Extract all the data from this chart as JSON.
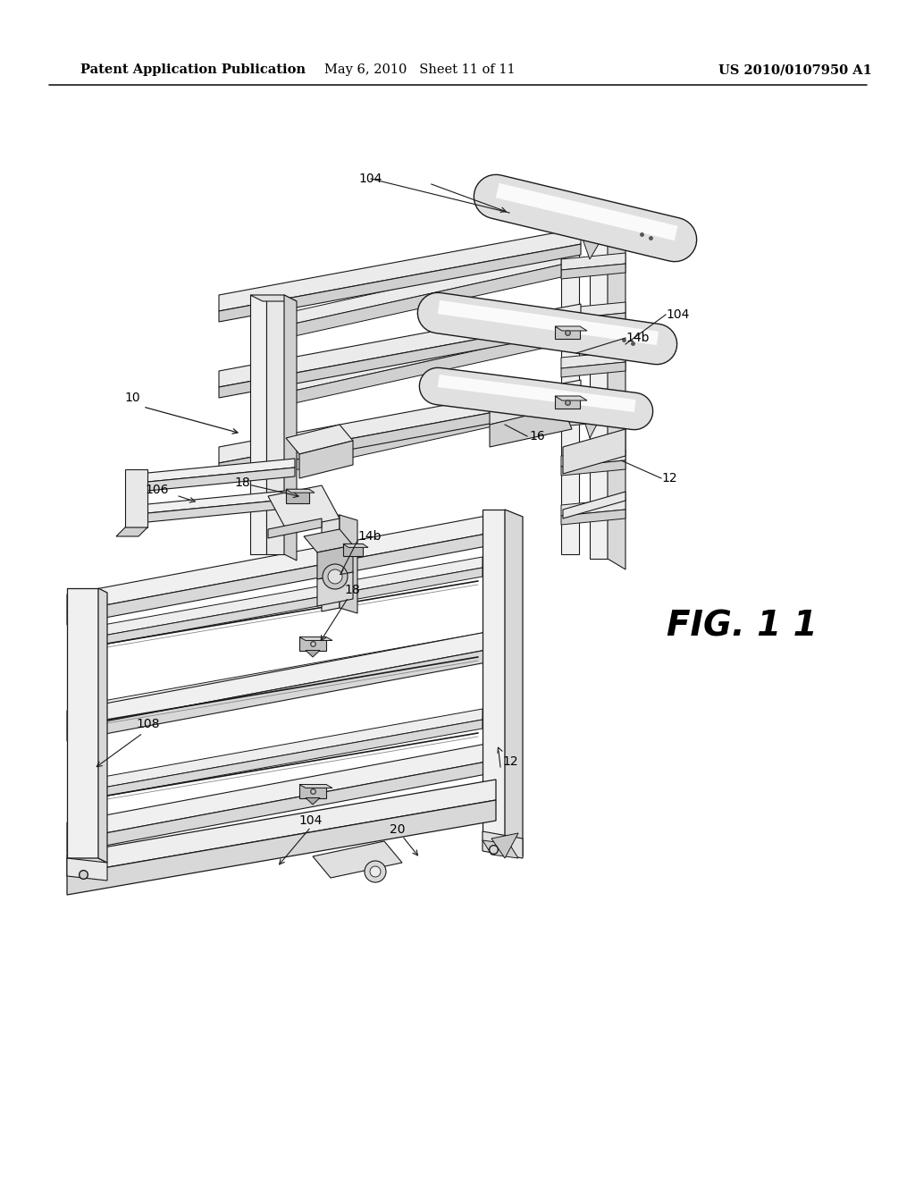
{
  "title_left": "Patent Application Publication",
  "title_mid": "May 6, 2010   Sheet 11 of 11",
  "title_right": "US 2010/0107950 A1",
  "fig_label": "FIG. 1 1",
  "background_color": "#ffffff",
  "lc": "#1a1a1a",
  "header_fontsize": 10.5,
  "label_fontsize": 10
}
